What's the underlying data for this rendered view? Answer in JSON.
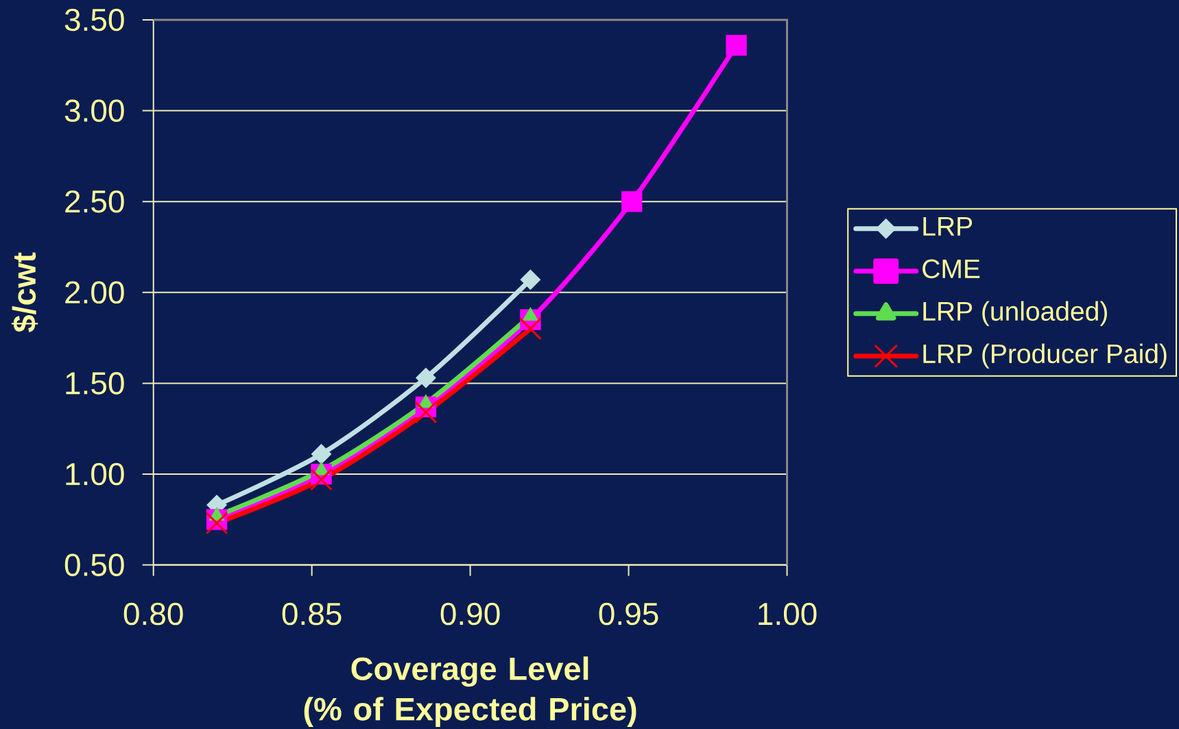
{
  "chart_data": {
    "type": "line",
    "xlabel": "Coverage Level (% of Expected Price)",
    "ylabel": "$/cwt",
    "xlim": [
      0.8,
      1.0
    ],
    "xticks": [
      {
        "value": 0.8,
        "label": "0.80"
      },
      {
        "value": 0.85,
        "label": "0.85"
      },
      {
        "value": 0.9,
        "label": "0.90"
      },
      {
        "value": 0.95,
        "label": "0.95"
      },
      {
        "value": 1.0,
        "label": "1.00"
      }
    ],
    "ylim": [
      0.5,
      3.5
    ],
    "yticks": [
      {
        "value": 0.5,
        "label": "0.50"
      },
      {
        "value": 1.0,
        "label": "1.00"
      },
      {
        "value": 1.5,
        "label": "1.50"
      },
      {
        "value": 2.0,
        "label": "2.00"
      },
      {
        "value": 2.5,
        "label": "2.50"
      },
      {
        "value": 3.0,
        "label": "3.00"
      },
      {
        "value": 3.5,
        "label": "3.50"
      }
    ],
    "grid": "y",
    "legend": "right",
    "line_style": "solid",
    "series": [
      {
        "name": "LRP",
        "color": "#c0e0e4",
        "marker": "diamond",
        "x": [
          0.82,
          0.853,
          0.886,
          0.919
        ],
        "values": [
          0.83,
          1.11,
          1.53,
          2.07
        ]
      },
      {
        "name": "CME",
        "color": "#ff00ff",
        "marker": "square",
        "x": [
          0.82,
          0.853,
          0.886,
          0.919,
          0.951,
          0.984
        ],
        "values": [
          0.75,
          1.0,
          1.37,
          1.85,
          2.5,
          3.36
        ]
      },
      {
        "name": "LRP (unloaded)",
        "color": "#5fdc4f",
        "marker": "triangle",
        "x": [
          0.82,
          0.853,
          0.886,
          0.919
        ],
        "values": [
          0.77,
          1.02,
          1.39,
          1.87
        ]
      },
      {
        "name": "LRP (Producer Paid)",
        "color": "#ff0000",
        "marker": "cross",
        "x": [
          0.82,
          0.853,
          0.886,
          0.919
        ],
        "values": [
          0.73,
          0.97,
          1.34,
          1.8
        ]
      }
    ]
  }
}
